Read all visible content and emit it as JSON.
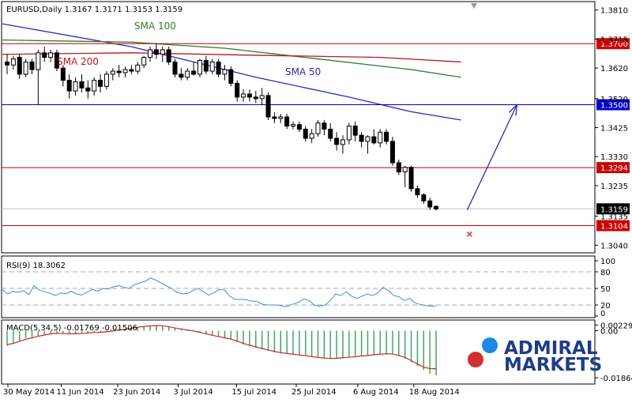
{
  "chart_data": {
    "type": "candlestick",
    "title": "EURUSD,Daily  1.3167 1.3171 1.3153 1.3159",
    "symbol": "EURUSD",
    "timeframe": "Daily",
    "ohlc_last": {
      "open": 1.3167,
      "high": 1.3171,
      "low": 1.3153,
      "close": 1.3159
    },
    "price_axis": {
      "ticks": [
        "1.3810",
        "1.3715",
        "1.3620",
        "1.3520",
        "1.3425",
        "1.3330",
        "1.3235",
        "1.3135",
        "1.3040"
      ],
      "ylim": [
        1.302,
        1.383
      ]
    },
    "x_ticks": [
      "30 May 2014",
      "11 Jun 2014",
      "23 Jun 2014",
      "3 Jul 2014",
      "15 Jul 2014",
      "25 Jul 2014",
      "6 Aug 2014",
      "18 Aug 2014"
    ],
    "candles": [
      {
        "o": 1.364,
        "h": 1.3665,
        "l": 1.36,
        "c": 1.363
      },
      {
        "o": 1.363,
        "h": 1.366,
        "l": 1.3615,
        "c": 1.365
      },
      {
        "o": 1.3655,
        "h": 1.3665,
        "l": 1.3585,
        "c": 1.36
      },
      {
        "o": 1.36,
        "h": 1.365,
        "l": 1.359,
        "c": 1.364
      },
      {
        "o": 1.364,
        "h": 1.365,
        "l": 1.36,
        "c": 1.3615
      },
      {
        "o": 1.3615,
        "h": 1.368,
        "l": 1.35,
        "c": 1.367
      },
      {
        "o": 1.367,
        "h": 1.369,
        "l": 1.364,
        "c": 1.3655
      },
      {
        "o": 1.3655,
        "h": 1.368,
        "l": 1.364,
        "c": 1.367
      },
      {
        "o": 1.367,
        "h": 1.368,
        "l": 1.361,
        "c": 1.362
      },
      {
        "o": 1.362,
        "h": 1.363,
        "l": 1.356,
        "c": 1.358
      },
      {
        "o": 1.358,
        "h": 1.36,
        "l": 1.352,
        "c": 1.3545
      },
      {
        "o": 1.3545,
        "h": 1.359,
        "l": 1.353,
        "c": 1.3575
      },
      {
        "o": 1.3575,
        "h": 1.36,
        "l": 1.354,
        "c": 1.3555
      },
      {
        "o": 1.3555,
        "h": 1.358,
        "l": 1.352,
        "c": 1.3545
      },
      {
        "o": 1.3545,
        "h": 1.359,
        "l": 1.353,
        "c": 1.358
      },
      {
        "o": 1.358,
        "h": 1.36,
        "l": 1.354,
        "c": 1.356
      },
      {
        "o": 1.356,
        "h": 1.361,
        "l": 1.355,
        "c": 1.36
      },
      {
        "o": 1.36,
        "h": 1.362,
        "l": 1.358,
        "c": 1.361
      },
      {
        "o": 1.361,
        "h": 1.363,
        "l": 1.359,
        "c": 1.3605
      },
      {
        "o": 1.3605,
        "h": 1.3625,
        "l": 1.359,
        "c": 1.3615
      },
      {
        "o": 1.3615,
        "h": 1.363,
        "l": 1.36,
        "c": 1.361
      },
      {
        "o": 1.361,
        "h": 1.364,
        "l": 1.36,
        "c": 1.363
      },
      {
        "o": 1.363,
        "h": 1.366,
        "l": 1.362,
        "c": 1.3655
      },
      {
        "o": 1.3655,
        "h": 1.369,
        "l": 1.364,
        "c": 1.368
      },
      {
        "o": 1.368,
        "h": 1.37,
        "l": 1.365,
        "c": 1.3665
      },
      {
        "o": 1.3665,
        "h": 1.369,
        "l": 1.364,
        "c": 1.368
      },
      {
        "o": 1.368,
        "h": 1.369,
        "l": 1.363,
        "c": 1.364
      },
      {
        "o": 1.364,
        "h": 1.365,
        "l": 1.359,
        "c": 1.36
      },
      {
        "o": 1.36,
        "h": 1.362,
        "l": 1.358,
        "c": 1.359
      },
      {
        "o": 1.359,
        "h": 1.362,
        "l": 1.358,
        "c": 1.361
      },
      {
        "o": 1.361,
        "h": 1.364,
        "l": 1.3595,
        "c": 1.36
      },
      {
        "o": 1.36,
        "h": 1.365,
        "l": 1.359,
        "c": 1.3645
      },
      {
        "o": 1.3645,
        "h": 1.366,
        "l": 1.36,
        "c": 1.361
      },
      {
        "o": 1.361,
        "h": 1.365,
        "l": 1.36,
        "c": 1.364
      },
      {
        "o": 1.364,
        "h": 1.365,
        "l": 1.359,
        "c": 1.36
      },
      {
        "o": 1.36,
        "h": 1.363,
        "l": 1.358,
        "c": 1.3615
      },
      {
        "o": 1.3615,
        "h": 1.3625,
        "l": 1.356,
        "c": 1.357
      },
      {
        "o": 1.357,
        "h": 1.358,
        "l": 1.351,
        "c": 1.3525
      },
      {
        "o": 1.3525,
        "h": 1.355,
        "l": 1.351,
        "c": 1.3535
      },
      {
        "o": 1.3535,
        "h": 1.355,
        "l": 1.351,
        "c": 1.3525
      },
      {
        "o": 1.3525,
        "h": 1.3545,
        "l": 1.3505,
        "c": 1.352
      },
      {
        "o": 1.352,
        "h": 1.3555,
        "l": 1.35,
        "c": 1.353
      },
      {
        "o": 1.353,
        "h": 1.354,
        "l": 1.345,
        "c": 1.346
      },
      {
        "o": 1.346,
        "h": 1.3475,
        "l": 1.344,
        "c": 1.3455
      },
      {
        "o": 1.3455,
        "h": 1.347,
        "l": 1.344,
        "c": 1.346
      },
      {
        "o": 1.346,
        "h": 1.347,
        "l": 1.342,
        "c": 1.343
      },
      {
        "o": 1.343,
        "h": 1.3445,
        "l": 1.342,
        "c": 1.3435
      },
      {
        "o": 1.3435,
        "h": 1.3445,
        "l": 1.341,
        "c": 1.342
      },
      {
        "o": 1.342,
        "h": 1.343,
        "l": 1.338,
        "c": 1.339
      },
      {
        "o": 1.339,
        "h": 1.342,
        "l": 1.3375,
        "c": 1.3405
      },
      {
        "o": 1.3405,
        "h": 1.345,
        "l": 1.3395,
        "c": 1.344
      },
      {
        "o": 1.344,
        "h": 1.345,
        "l": 1.34,
        "c": 1.342
      },
      {
        "o": 1.342,
        "h": 1.344,
        "l": 1.338,
        "c": 1.339
      },
      {
        "o": 1.339,
        "h": 1.341,
        "l": 1.335,
        "c": 1.337
      },
      {
        "o": 1.337,
        "h": 1.34,
        "l": 1.334,
        "c": 1.3385
      },
      {
        "o": 1.3385,
        "h": 1.344,
        "l": 1.337,
        "c": 1.343
      },
      {
        "o": 1.343,
        "h": 1.3445,
        "l": 1.338,
        "c": 1.34
      },
      {
        "o": 1.34,
        "h": 1.341,
        "l": 1.336,
        "c": 1.338
      },
      {
        "o": 1.338,
        "h": 1.34,
        "l": 1.334,
        "c": 1.3395
      },
      {
        "o": 1.3395,
        "h": 1.342,
        "l": 1.337,
        "c": 1.3375
      },
      {
        "o": 1.3375,
        "h": 1.342,
        "l": 1.336,
        "c": 1.341
      },
      {
        "o": 1.341,
        "h": 1.342,
        "l": 1.337,
        "c": 1.338
      },
      {
        "o": 1.338,
        "h": 1.3395,
        "l": 1.33,
        "c": 1.331
      },
      {
        "o": 1.331,
        "h": 1.332,
        "l": 1.327,
        "c": 1.328
      },
      {
        "o": 1.328,
        "h": 1.33,
        "l": 1.323,
        "c": 1.3295
      },
      {
        "o": 1.3295,
        "h": 1.33,
        "l": 1.3215,
        "c": 1.3225
      },
      {
        "o": 1.3225,
        "h": 1.3235,
        "l": 1.3195,
        "c": 1.3205
      },
      {
        "o": 1.3205,
        "h": 1.321,
        "l": 1.3175,
        "c": 1.3185
      },
      {
        "o": 1.3185,
        "h": 1.3195,
        "l": 1.3155,
        "c": 1.3165
      },
      {
        "o": 1.3167,
        "h": 1.3171,
        "l": 1.3153,
        "c": 1.3159
      }
    ],
    "moving_averages": [
      {
        "name": "SMA 50",
        "color": "#2b2bb8",
        "points": [
          [
            -2,
            1.3765
          ],
          [
            20,
            1.369
          ],
          [
            40,
            1.359
          ],
          [
            55,
            1.3525
          ],
          [
            65,
            1.3477
          ],
          [
            73,
            1.345
          ]
        ]
      },
      {
        "name": "SMA 100",
        "color": "#2e7d32",
        "points": [
          [
            -2,
            1.3712
          ],
          [
            20,
            1.3705
          ],
          [
            35,
            1.3685
          ],
          [
            50,
            1.365
          ],
          [
            65,
            1.3615
          ],
          [
            73,
            1.359
          ]
        ]
      },
      {
        "name": "SMA 200",
        "color": "#b71c1c",
        "points": [
          [
            -2,
            1.3665
          ],
          [
            20,
            1.367
          ],
          [
            40,
            1.3662
          ],
          [
            60,
            1.3655
          ],
          [
            73,
            1.364
          ]
        ]
      }
    ],
    "horizontal_levels": [
      {
        "label": "1.3700",
        "value": 1.37,
        "color": "#cc0000"
      },
      {
        "label": "1.3500",
        "value": 1.35,
        "color": "#0000cc"
      },
      {
        "label": "1.3294",
        "value": 1.3294,
        "color": "#cc0000"
      },
      {
        "label": "1.3104",
        "value": 1.3104,
        "color": "#cc0000"
      }
    ],
    "price_label": {
      "label": "1.3159",
      "value": 1.3159
    },
    "projection_arrow": {
      "from": [
        74,
        1.3155
      ],
      "to": [
        82,
        1.35
      ],
      "color": "#2b2bb8"
    },
    "marker_x": {
      "index": 74,
      "value": 1.3076
    },
    "rsi": {
      "title": "RSI(9) 18.3062",
      "ticks": [
        "100",
        "80",
        "50",
        "20",
        "0"
      ],
      "levels": [
        80,
        50,
        20
      ],
      "ylim": [
        0,
        100
      ],
      "values": [
        48,
        40,
        45,
        43,
        46,
        39,
        55,
        47,
        44,
        41,
        37,
        42,
        40,
        45,
        40,
        38,
        43,
        48,
        45,
        50,
        49,
        53,
        55,
        52,
        50,
        57,
        60,
        63,
        69,
        65,
        60,
        55,
        50,
        43,
        40,
        41,
        46,
        50,
        44,
        38,
        42,
        48,
        47,
        36,
        30,
        30,
        30,
        27,
        27,
        22,
        20,
        20,
        20,
        18,
        18,
        22,
        25,
        31,
        28,
        20,
        18,
        20,
        28,
        40,
        37,
        44,
        36,
        32,
        36,
        40,
        37,
        42,
        52,
        46,
        37,
        35,
        28,
        32,
        24,
        21,
        19,
        18,
        18
      ]
    },
    "macd": {
      "title": "MACD(5,34,5) -0.01769 -0.01506",
      "ticks": [
        "0.00229",
        "0.00",
        "-0.01864"
      ],
      "ylim": [
        -0.0205,
        0.003
      ],
      "histogram": [
        -0.006,
        -0.005,
        -0.004,
        -0.003,
        -0.0025,
        -0.002,
        -0.0015,
        -0.001,
        -0.001,
        -0.0012,
        -0.0013,
        -0.0012,
        -0.001,
        -0.0008,
        -0.0007,
        -0.0005,
        -0.0003,
        0.0,
        0.0005,
        0.0008,
        0.0012,
        0.0016,
        0.0018,
        0.002,
        0.0022,
        0.002,
        0.0015,
        0.001,
        0.0005,
        0.0002,
        -0.0002,
        -0.0008,
        -0.0015,
        -0.002,
        -0.0025,
        -0.003,
        -0.0035,
        -0.0045,
        -0.0055,
        -0.0062,
        -0.0068,
        -0.0074,
        -0.008,
        -0.0086,
        -0.009,
        -0.0092,
        -0.0095,
        -0.0098,
        -0.01,
        -0.0104,
        -0.0108,
        -0.011,
        -0.0112,
        -0.011,
        -0.0108,
        -0.0105,
        -0.0103,
        -0.01,
        -0.0097,
        -0.0094,
        -0.0092,
        -0.009,
        -0.0092,
        -0.01,
        -0.011,
        -0.0125,
        -0.014,
        -0.0155,
        -0.017,
        -0.0177
      ],
      "signal": [
        -0.0055,
        -0.005,
        -0.0042,
        -0.0034,
        -0.0028,
        -0.0022,
        -0.0017,
        -0.0012,
        -0.001,
        -0.0011,
        -0.0012,
        -0.0012,
        -0.0011,
        -0.0009,
        -0.0007,
        -0.0006,
        -0.0004,
        -0.0001,
        0.0003,
        0.0006,
        0.001,
        0.0014,
        0.0017,
        0.0019,
        0.0021,
        0.002,
        0.0016,
        0.0011,
        0.0007,
        0.0003,
        -0.0001,
        -0.0006,
        -0.0012,
        -0.0018,
        -0.0023,
        -0.0028,
        -0.0033,
        -0.0041,
        -0.005,
        -0.0057,
        -0.0064,
        -0.007,
        -0.0076,
        -0.0082,
        -0.0087,
        -0.009,
        -0.0093,
        -0.0096,
        -0.0099,
        -0.0102,
        -0.0106,
        -0.0108,
        -0.011,
        -0.0109,
        -0.0107,
        -0.0105,
        -0.0103,
        -0.01,
        -0.0098,
        -0.0095,
        -0.0093,
        -0.0091,
        -0.0092,
        -0.0098,
        -0.0106,
        -0.0118,
        -0.0132,
        -0.0144,
        -0.015,
        -0.0151
      ]
    }
  },
  "branding": {
    "line1": "ADMIRAL",
    "line2": "MARKETS",
    "dot_blue": "#1e88e5",
    "dot_red": "#d32f2f",
    "text_color": "#1f3c88"
  }
}
